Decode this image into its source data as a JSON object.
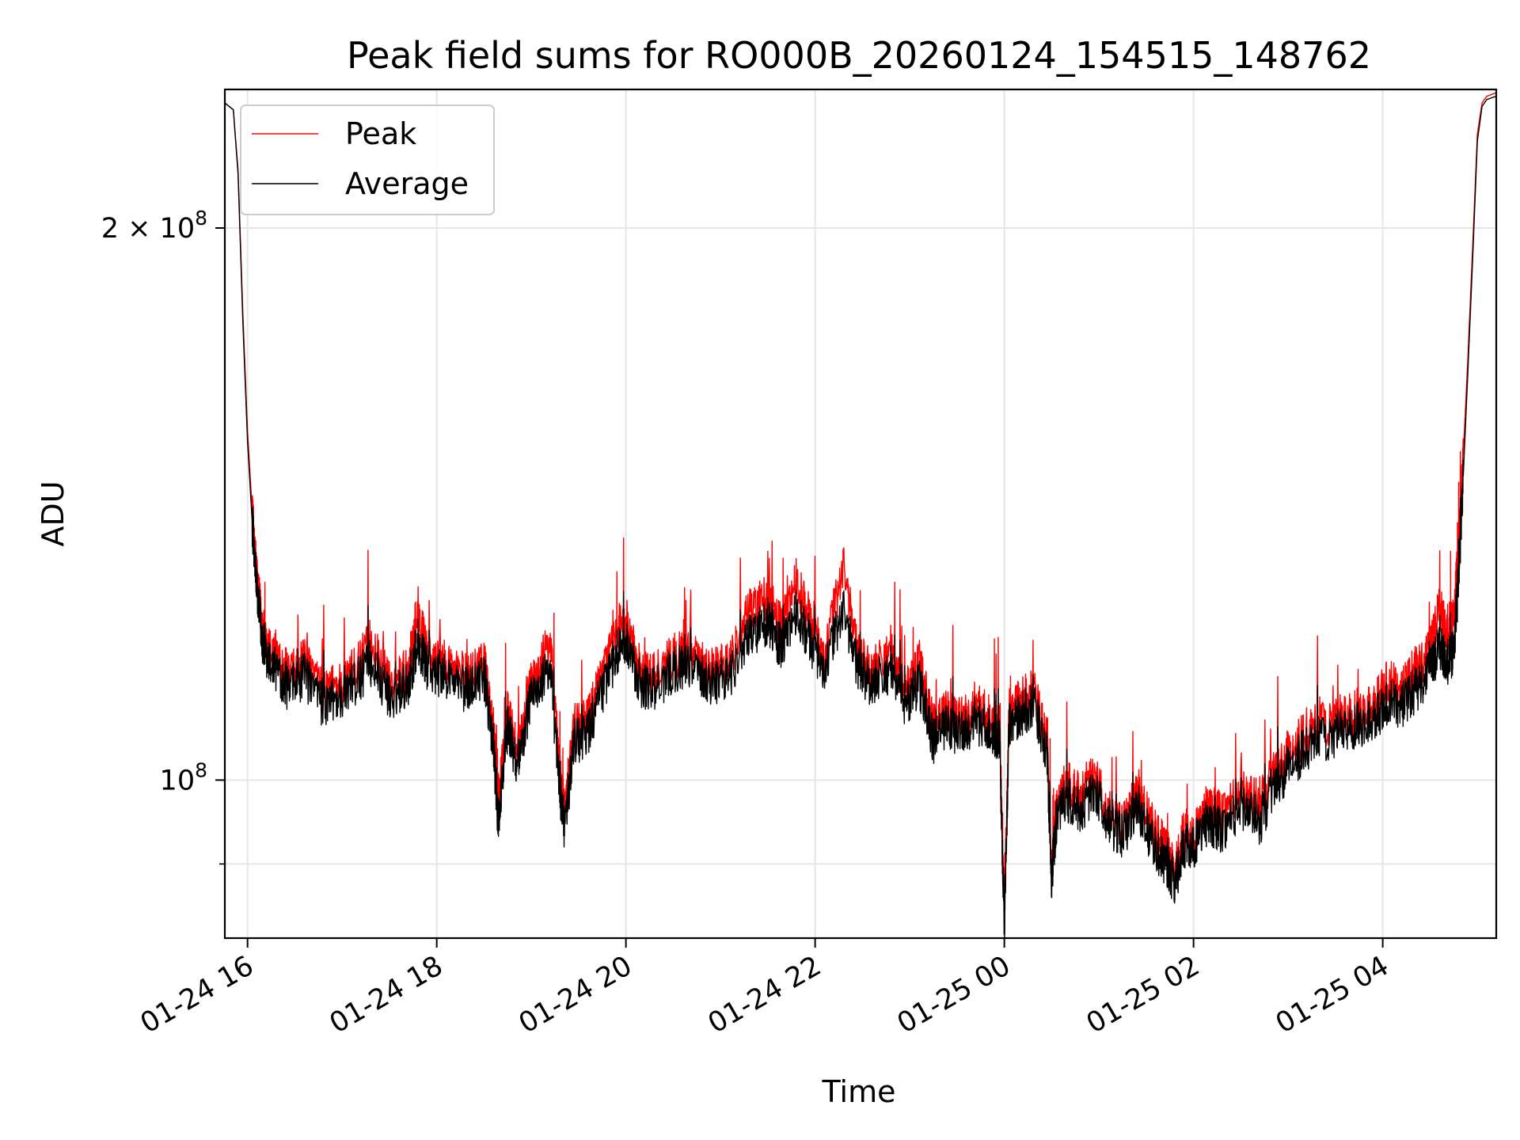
{
  "chart_data": {
    "type": "line",
    "title": "Peak field sums for RO000B_20260124_154515_148762",
    "xlabel": "Time",
    "ylabel": "ADU",
    "yscale": "log",
    "ylim": [
      82000000,
      238000000
    ],
    "x_unit": "hours since 2026-01-24 00:00",
    "xlim": [
      15.76,
      29.2
    ],
    "grid": true,
    "legend_location": "upper-left",
    "x_ticks": [
      {
        "value": 16,
        "label": "01-24 16"
      },
      {
        "value": 18,
        "label": "01-24 18"
      },
      {
        "value": 20,
        "label": "01-24 20"
      },
      {
        "value": 22,
        "label": "01-24 22"
      },
      {
        "value": 24,
        "label": "01-25 00"
      },
      {
        "value": 26,
        "label": "01-25 02"
      },
      {
        "value": 28,
        "label": "01-25 04"
      }
    ],
    "y_major_ticks": [
      {
        "value": 100000000,
        "label": "10",
        "exp": "8",
        "prefix": ""
      },
      {
        "value": 200000000,
        "label": "2",
        "exp": "8",
        "prefix": "× 10"
      }
    ],
    "y_minor_ticks": [
      90000000
    ],
    "series": [
      {
        "name": "Peak",
        "color": "#ff0000",
        "x": [
          15.76,
          15.85,
          15.9,
          15.95,
          16.0,
          16.05,
          16.1,
          16.15,
          16.2,
          16.3,
          16.45,
          16.6,
          16.8,
          17.0,
          17.15,
          17.3,
          17.5,
          17.7,
          17.8,
          17.9,
          18.1,
          18.3,
          18.5,
          18.6,
          18.65,
          18.75,
          18.85,
          19.0,
          19.2,
          19.3,
          19.35,
          19.45,
          19.6,
          19.75,
          19.9,
          20.0,
          20.15,
          20.3,
          20.5,
          20.7,
          20.9,
          21.1,
          21.3,
          21.5,
          21.65,
          21.8,
          21.95,
          22.1,
          22.3,
          22.45,
          22.6,
          22.8,
          22.95,
          23.1,
          23.25,
          23.4,
          23.55,
          23.7,
          23.85,
          23.95,
          24.0,
          24.05,
          24.15,
          24.3,
          24.45,
          24.5,
          24.55,
          24.65,
          24.8,
          24.95,
          25.1,
          25.25,
          25.4,
          25.55,
          25.7,
          25.8,
          25.9,
          26.0,
          26.15,
          26.3,
          26.5,
          26.7,
          26.9,
          27.1,
          27.3,
          27.5,
          27.7,
          27.9,
          28.05,
          28.2,
          28.35,
          28.5,
          28.6,
          28.7,
          28.75,
          28.8,
          28.85,
          28.9,
          28.95,
          29.0,
          29.05,
          29.1,
          29.2
        ],
        "y": [
          234000000,
          232000000,
          215000000,
          180000000,
          155000000,
          140000000,
          129000000,
          122000000,
          118000000,
          117000000,
          114000000,
          116000000,
          112000000,
          113000000,
          115000000,
          119000000,
          113000000,
          115000000,
          124000000,
          117000000,
          116000000,
          114000000,
          116000000,
          106000000,
          98000000,
          109000000,
          104000000,
          113000000,
          119000000,
          101000000,
          96000000,
          107000000,
          108000000,
          114000000,
          121000000,
          122000000,
          115000000,
          114000000,
          117000000,
          118000000,
          115000000,
          116000000,
          124000000,
          126000000,
          121000000,
          129000000,
          122000000,
          117000000,
          131000000,
          117000000,
          115000000,
          118000000,
          112000000,
          116000000,
          107000000,
          109000000,
          108000000,
          110000000,
          108000000,
          107000000,
          84000000,
          109000000,
          110000000,
          112000000,
          106000000,
          89000000,
          96000000,
          100000000,
          98000000,
          101000000,
          96000000,
          94000000,
          99000000,
          95000000,
          92000000,
          89000000,
          94000000,
          93000000,
          97000000,
          96000000,
          99000000,
          97000000,
          102000000,
          105000000,
          107000000,
          108000000,
          109000000,
          110000000,
          113000000,
          112000000,
          115000000,
          118000000,
          124000000,
          120000000,
          123000000,
          133000000,
          150000000,
          170000000,
          195000000,
          225000000,
          234000000,
          236000000,
          237000000
        ]
      },
      {
        "name": "Average",
        "color": "#000000",
        "x": [
          15.76,
          15.85,
          15.9,
          15.95,
          16.0,
          16.05,
          16.1,
          16.15,
          16.2,
          16.3,
          16.45,
          16.6,
          16.8,
          17.0,
          17.15,
          17.3,
          17.5,
          17.7,
          17.8,
          17.9,
          18.1,
          18.3,
          18.5,
          18.6,
          18.65,
          18.75,
          18.85,
          19.0,
          19.2,
          19.3,
          19.35,
          19.45,
          19.6,
          19.75,
          19.9,
          20.0,
          20.15,
          20.3,
          20.5,
          20.7,
          20.9,
          21.1,
          21.3,
          21.5,
          21.65,
          21.8,
          21.95,
          22.1,
          22.3,
          22.45,
          22.6,
          22.8,
          22.95,
          23.1,
          23.25,
          23.4,
          23.55,
          23.7,
          23.85,
          23.95,
          24.0,
          24.05,
          24.15,
          24.3,
          24.45,
          24.5,
          24.55,
          24.65,
          24.8,
          24.95,
          25.1,
          25.25,
          25.4,
          25.55,
          25.7,
          25.8,
          25.9,
          26.0,
          26.15,
          26.3,
          26.5,
          26.7,
          26.9,
          27.1,
          27.3,
          27.5,
          27.7,
          27.9,
          28.05,
          28.2,
          28.35,
          28.5,
          28.6,
          28.7,
          28.75,
          28.8,
          28.85,
          28.9,
          28.95,
          29.0,
          29.05,
          29.1,
          29.2
        ],
        "y": [
          234000000,
          232000000,
          214000000,
          178000000,
          153000000,
          138000000,
          127000000,
          120000000,
          116000000,
          115000000,
          112000000,
          114000000,
          110000000,
          111000000,
          113000000,
          116000000,
          111000000,
          113000000,
          119000000,
          115000000,
          114000000,
          112000000,
          114000000,
          104000000,
          95000000,
          107000000,
          102000000,
          111000000,
          115000000,
          99000000,
          94000000,
          105000000,
          106000000,
          112000000,
          117000000,
          119000000,
          113000000,
          112000000,
          115000000,
          116000000,
          113000000,
          114000000,
          120000000,
          122000000,
          118000000,
          124000000,
          119000000,
          115000000,
          124000000,
          115000000,
          113000000,
          115000000,
          110000000,
          113000000,
          105000000,
          107000000,
          106000000,
          108000000,
          106000000,
          105000000,
          83000000,
          107000000,
          108000000,
          110000000,
          104000000,
          88000000,
          95000000,
          98000000,
          96000000,
          99000000,
          95000000,
          93000000,
          97000000,
          93000000,
          90000000,
          88000000,
          92000000,
          92000000,
          95000000,
          94000000,
          97000000,
          95000000,
          100000000,
          103000000,
          105000000,
          106000000,
          107000000,
          108000000,
          110000000,
          110000000,
          112000000,
          115000000,
          118000000,
          116000000,
          118000000,
          128000000,
          146000000,
          167000000,
          192000000,
          223000000,
          233000000,
          235000000,
          236000000
        ]
      }
    ]
  }
}
